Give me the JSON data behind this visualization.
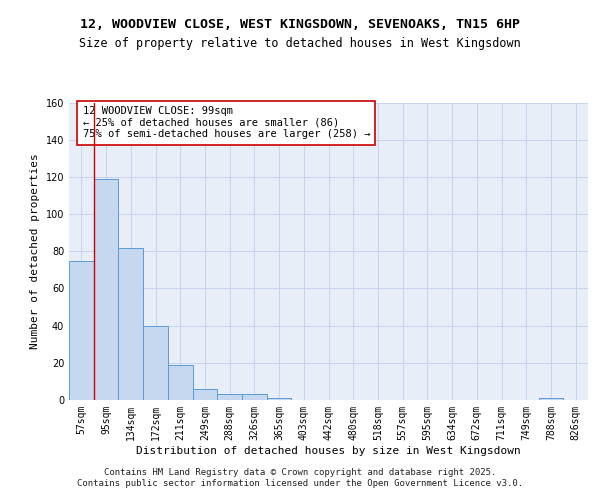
{
  "title": "12, WOODVIEW CLOSE, WEST KINGSDOWN, SEVENOAKS, TN15 6HP",
  "subtitle": "Size of property relative to detached houses in West Kingsdown",
  "xlabel": "Distribution of detached houses by size in West Kingsdown",
  "ylabel": "Number of detached properties",
  "bin_labels": [
    "57sqm",
    "95sqm",
    "134sqm",
    "172sqm",
    "211sqm",
    "249sqm",
    "288sqm",
    "326sqm",
    "365sqm",
    "403sqm",
    "442sqm",
    "480sqm",
    "518sqm",
    "557sqm",
    "595sqm",
    "634sqm",
    "672sqm",
    "711sqm",
    "749sqm",
    "788sqm",
    "826sqm"
  ],
  "bar_heights": [
    75,
    119,
    82,
    40,
    19,
    6,
    3,
    3,
    1,
    0,
    0,
    0,
    0,
    0,
    0,
    0,
    0,
    0,
    0,
    1,
    0
  ],
  "bar_color": "#c5d8f0",
  "bar_edge_color": "#5b9bd5",
  "grid_color": "#c8d4ee",
  "background_color": "#e8eef8",
  "vline_x_pos": 1,
  "vline_color": "#cc0000",
  "annotation_text": "12 WOODVIEW CLOSE: 99sqm\n← 25% of detached houses are smaller (86)\n75% of semi-detached houses are larger (258) →",
  "annotation_box_color": "#ffffff",
  "annotation_box_edge": "#cc0000",
  "ylim": [
    0,
    160
  ],
  "yticks": [
    0,
    20,
    40,
    60,
    80,
    100,
    120,
    140,
    160
  ],
  "footer_text": "Contains HM Land Registry data © Crown copyright and database right 2025.\nContains public sector information licensed under the Open Government Licence v3.0.",
  "title_fontsize": 9.5,
  "subtitle_fontsize": 8.5,
  "xlabel_fontsize": 8,
  "ylabel_fontsize": 8,
  "tick_fontsize": 7,
  "annotation_fontsize": 7.5,
  "footer_fontsize": 6.5
}
